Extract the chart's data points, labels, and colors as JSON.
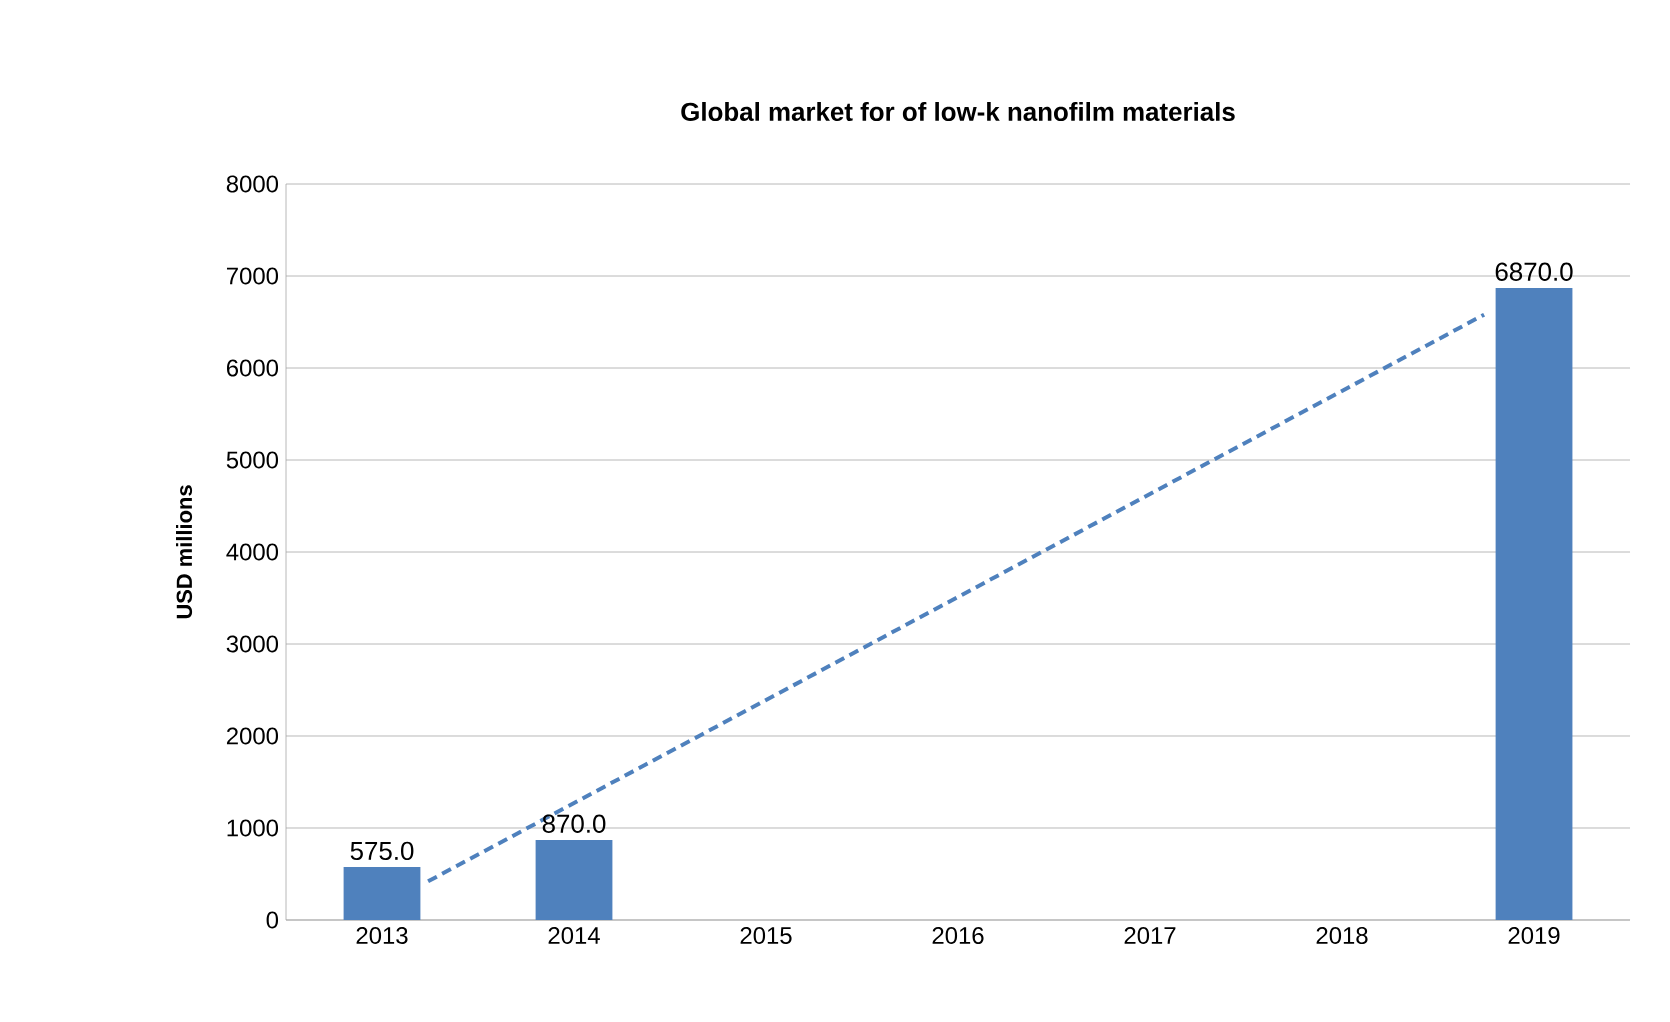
{
  "chart_data": {
    "type": "bar",
    "title": "Global market for of low-k nanofilm materials",
    "ylabel": "USD millions",
    "x": [
      2013,
      2014,
      2015,
      2016,
      2017,
      2018,
      2019
    ],
    "series": [
      {
        "color": "#4f81bd",
        "values": [
          575,
          870,
          null,
          null,
          null,
          null,
          6870
        ],
        "value_labels": [
          "575.0",
          "870.0",
          null,
          null,
          null,
          null,
          "6870.0"
        ]
      },
      {
        "type": "line",
        "color": "#4f81bd",
        "line_style": "dashed",
        "x": [
          2013.24,
          2018.74
        ],
        "values": [
          420,
          6580
        ]
      }
    ],
    "xlim": [
      2012.5,
      2019.5
    ],
    "xticks": [
      2013,
      2014,
      2015,
      2016,
      2017,
      2018,
      2019
    ],
    "ylim": [
      0,
      8000
    ],
    "yticks": [
      0,
      1000,
      2000,
      3000,
      4000,
      5000,
      6000,
      7000,
      8000
    ],
    "grid": "y"
  }
}
